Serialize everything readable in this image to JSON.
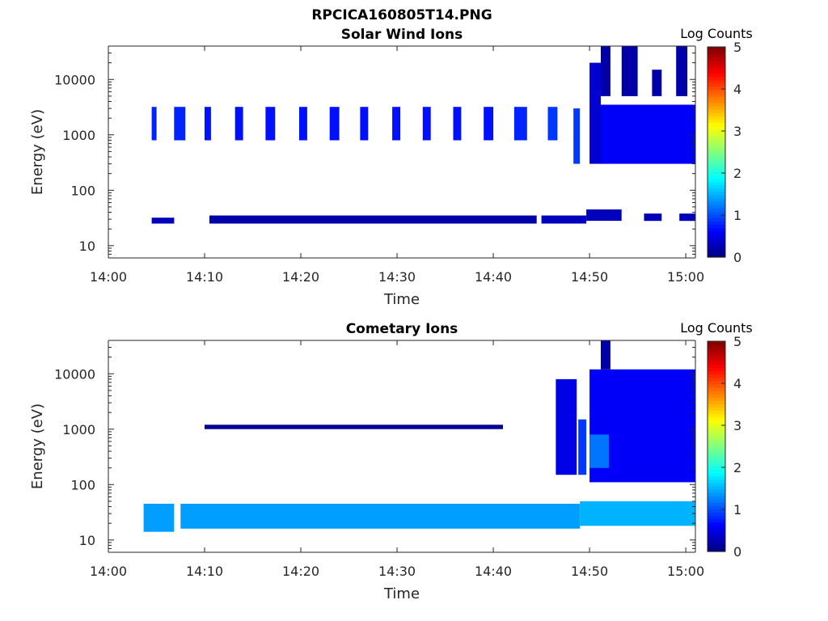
{
  "page": {
    "suptitle": "RPCICA160805T14.PNG"
  },
  "colorbar": {
    "label": "Log Counts",
    "min": 0,
    "max": 5,
    "ticks": [
      "0",
      "1",
      "2",
      "3",
      "4",
      "5"
    ],
    "colormap": "jet"
  },
  "chart_data": [
    {
      "type": "heatmap",
      "title": "Solar Wind Ions",
      "xlabel": "Time",
      "ylabel": "Energy (eV)",
      "y_scale": "log",
      "xlim": [
        "14:00",
        "15:01"
      ],
      "ylim": [
        6,
        40000
      ],
      "x_ticks": [
        "14:00",
        "14:10",
        "14:20",
        "14:30",
        "14:40",
        "14:50",
        "15:00"
      ],
      "y_ticks": [
        "10",
        "100",
        "1000",
        "10000"
      ],
      "blocks": [
        {
          "t0": "14:04:30",
          "t1": "14:05:00",
          "e0": 800,
          "e1": 3200,
          "z": 0.8
        },
        {
          "t0": "14:06:50",
          "t1": "14:08:00",
          "e0": 800,
          "e1": 3200,
          "z": 0.8
        },
        {
          "t0": "14:10:00",
          "t1": "14:10:40",
          "e0": 800,
          "e1": 3200,
          "z": 0.7
        },
        {
          "t0": "14:13:10",
          "t1": "14:14:00",
          "e0": 800,
          "e1": 3200,
          "z": 0.7
        },
        {
          "t0": "14:16:20",
          "t1": "14:17:20",
          "e0": 800,
          "e1": 3200,
          "z": 0.7
        },
        {
          "t0": "14:19:50",
          "t1": "14:20:40",
          "e0": 800,
          "e1": 3200,
          "z": 0.7
        },
        {
          "t0": "14:23:00",
          "t1": "14:24:00",
          "e0": 800,
          "e1": 3200,
          "z": 0.7
        },
        {
          "t0": "14:26:10",
          "t1": "14:27:00",
          "e0": 800,
          "e1": 3200,
          "z": 0.7
        },
        {
          "t0": "14:29:30",
          "t1": "14:30:20",
          "e0": 800,
          "e1": 3200,
          "z": 0.7
        },
        {
          "t0": "14:32:40",
          "t1": "14:33:30",
          "e0": 800,
          "e1": 3200,
          "z": 0.7
        },
        {
          "t0": "14:35:50",
          "t1": "14:36:40",
          "e0": 800,
          "e1": 3200,
          "z": 0.7
        },
        {
          "t0": "14:39:00",
          "t1": "14:40:00",
          "e0": 800,
          "e1": 3200,
          "z": 0.7
        },
        {
          "t0": "14:42:10",
          "t1": "14:43:30",
          "e0": 800,
          "e1": 3200,
          "z": 0.8
        },
        {
          "t0": "14:45:40",
          "t1": "14:46:40",
          "e0": 800,
          "e1": 3200,
          "z": 0.9
        },
        {
          "t0": "14:48:20",
          "t1": "14:49:00",
          "e0": 300,
          "e1": 3000,
          "z": 0.9
        },
        {
          "t0": "14:50:00",
          "t1": "14:51:10",
          "e0": 300,
          "e1": 20000,
          "z": 0.4
        },
        {
          "t0": "14:51:10",
          "t1": "15:01:00",
          "e0": 300,
          "e1": 3500,
          "z": 0.6
        },
        {
          "t0": "14:51:10",
          "t1": "14:52:10",
          "e0": 5000,
          "e1": 40000,
          "z": 0.2
        },
        {
          "t0": "14:53:20",
          "t1": "14:55:00",
          "e0": 5000,
          "e1": 40000,
          "z": 0.2
        },
        {
          "t0": "14:56:30",
          "t1": "14:57:30",
          "e0": 5000,
          "e1": 15000,
          "z": 0.2
        },
        {
          "t0": "14:59:00",
          "t1": "15:00:10",
          "e0": 5000,
          "e1": 40000,
          "z": 0.2
        },
        {
          "t0": "14:04:30",
          "t1": "14:06:50",
          "e0": 25,
          "e1": 32,
          "z": 0.3
        },
        {
          "t0": "14:10:30",
          "t1": "14:44:30",
          "e0": 25,
          "e1": 35,
          "z": 0.2
        },
        {
          "t0": "14:45:00",
          "t1": "14:49:40",
          "e0": 25,
          "e1": 35,
          "z": 0.3
        },
        {
          "t0": "14:49:40",
          "t1": "14:53:20",
          "e0": 28,
          "e1": 45,
          "z": 0.3
        },
        {
          "t0": "14:55:40",
          "t1": "14:57:30",
          "e0": 28,
          "e1": 38,
          "z": 0.3
        },
        {
          "t0": "14:59:20",
          "t1": "15:01:00",
          "e0": 28,
          "e1": 38,
          "z": 0.3
        }
      ]
    },
    {
      "type": "heatmap",
      "title": "Cometary Ions",
      "xlabel": "Time",
      "ylabel": "Energy (eV)",
      "y_scale": "log",
      "xlim": [
        "14:00",
        "15:01"
      ],
      "ylim": [
        6,
        40000
      ],
      "x_ticks": [
        "14:00",
        "14:10",
        "14:20",
        "14:30",
        "14:40",
        "14:50",
        "15:00"
      ],
      "y_ticks": [
        "10",
        "100",
        "1000",
        "10000"
      ],
      "blocks": [
        {
          "t0": "14:03:40",
          "t1": "14:06:50",
          "e0": 14,
          "e1": 45,
          "z": 1.4
        },
        {
          "t0": "14:07:30",
          "t1": "14:49:00",
          "e0": 16,
          "e1": 45,
          "z": 1.4
        },
        {
          "t0": "14:49:00",
          "t1": "15:01:00",
          "e0": 18,
          "e1": 50,
          "z": 1.5
        },
        {
          "t0": "14:46:30",
          "t1": "14:48:40",
          "e0": 150,
          "e1": 8000,
          "z": 0.5
        },
        {
          "t0": "14:48:50",
          "t1": "14:49:40",
          "e0": 150,
          "e1": 1500,
          "z": 0.9
        },
        {
          "t0": "14:50:00",
          "t1": "15:01:00",
          "e0": 110,
          "e1": 12000,
          "z": 0.6
        },
        {
          "t0": "14:50:00",
          "t1": "14:52:00",
          "e0": 200,
          "e1": 800,
          "z": 1.2
        },
        {
          "t0": "14:51:10",
          "t1": "14:52:10",
          "e0": 12000,
          "e1": 40000,
          "z": 0.2
        },
        {
          "t0": "14:10:00",
          "t1": "14:41:00",
          "e0": 1000,
          "e1": 1200,
          "z": 0.1
        }
      ]
    }
  ]
}
